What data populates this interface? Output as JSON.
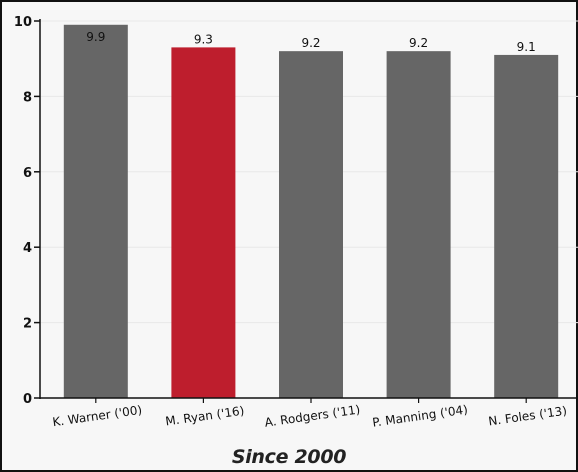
{
  "chart_data": {
    "type": "bar",
    "title": "Since 2000",
    "categories": [
      "K. Warner ('00)",
      "M. Ryan ('16)",
      "A. Rodgers ('11)",
      "P. Manning ('04)",
      "N. Foles ('13)"
    ],
    "values": [
      9.9,
      9.3,
      9.2,
      9.2,
      9.1
    ],
    "value_labels": [
      "9.9",
      "9.3",
      "9.2",
      "9.2",
      "9.1"
    ],
    "highlight_index": 1,
    "ylim": [
      0,
      10
    ],
    "yticks": [
      "0",
      "2",
      "4",
      "6",
      "8",
      "10"
    ],
    "grid": true,
    "colors": {
      "bar": "#666666",
      "highlight": "#be1e2d",
      "grid": "#e8e8e8"
    }
  }
}
